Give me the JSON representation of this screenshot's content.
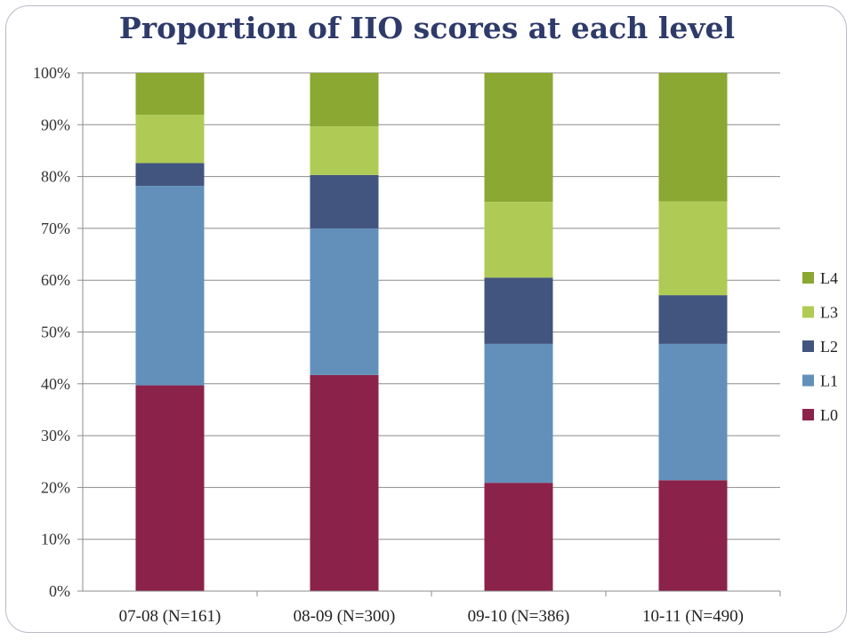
{
  "chart_data": {
    "type": "bar",
    "stacked": true,
    "title": "Proportion of IIO scores at each level",
    "xlabel": "",
    "ylabel": "",
    "ylim": [
      0,
      100
    ],
    "ytick_labels": [
      "0%",
      "10%",
      "20%",
      "30%",
      "40%",
      "50%",
      "60%",
      "70%",
      "80%",
      "90%",
      "100%"
    ],
    "grid": true,
    "legend_position": "right",
    "categories": [
      "07-08 (N=161)",
      "08-09 (N=300)",
      "09-10 (N=386)",
      "10-11 (N=490)"
    ],
    "series": [
      {
        "name": "L0",
        "color": "#8b2249",
        "values": [
          39.7,
          41.7,
          20.9,
          21.4
        ]
      },
      {
        "name": "L1",
        "color": "#6390bb",
        "values": [
          38.5,
          28.3,
          26.8,
          26.3
        ]
      },
      {
        "name": "L2",
        "color": "#42557f",
        "values": [
          4.4,
          10.3,
          12.8,
          9.4
        ]
      },
      {
        "name": "L3",
        "color": "#afcb55",
        "values": [
          9.3,
          9.4,
          14.6,
          18.1
        ]
      },
      {
        "name": "L4",
        "color": "#8aa832",
        "values": [
          8.1,
          10.3,
          24.9,
          24.8
        ]
      }
    ]
  }
}
